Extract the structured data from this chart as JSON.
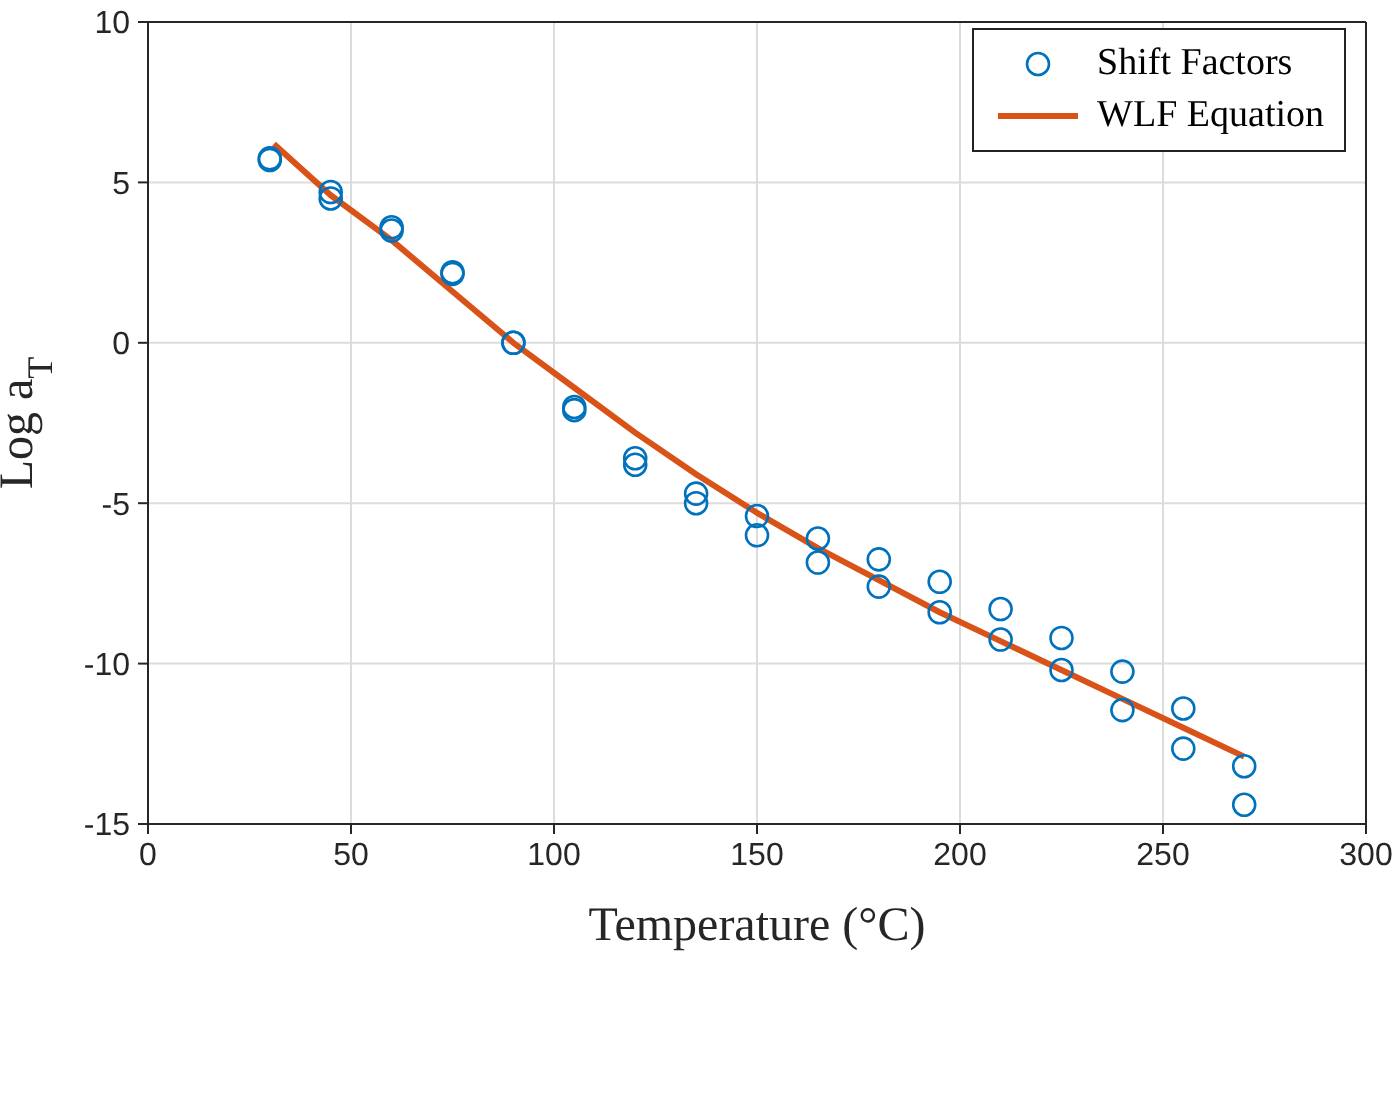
{
  "chart_data": {
    "type": "scatter",
    "xlabel": "Temperature (°C)",
    "ylabel": "Log a$_{T}$",
    "xlim": [
      0,
      300
    ],
    "xticks": [
      0,
      50,
      100,
      150,
      200,
      250,
      300
    ],
    "ylim": [
      -15,
      10
    ],
    "yticks": [
      -15,
      -10,
      -5,
      0,
      5,
      10
    ],
    "grid": true,
    "legend": "top right",
    "series": [
      {
        "name": "Shift Factors",
        "marker": "circle",
        "color": "#0072bd",
        "x": [
          30,
          30,
          45,
          45,
          60,
          60,
          75,
          75,
          90,
          90,
          105,
          105,
          120,
          120,
          135,
          135,
          150,
          150,
          165,
          165,
          180,
          180,
          195,
          195,
          210,
          210,
          225,
          225,
          240,
          240,
          255,
          255,
          270,
          270
        ],
        "values": [
          5.75,
          5.7,
          4.7,
          4.5,
          3.6,
          3.5,
          2.2,
          2.15,
          0,
          0,
          -2.0,
          -2.1,
          -3.6,
          -3.8,
          -4.7,
          -5.0,
          -5.4,
          -6.0,
          -6.1,
          -6.85,
          -6.75,
          -7.6,
          -7.45,
          -8.4,
          -8.3,
          -9.25,
          -9.2,
          -10.2,
          -10.25,
          -11.45,
          -11.4,
          -12.65,
          -13.2,
          -14.4
        ]
      },
      {
        "name": "WLF Equation",
        "type": "line",
        "marker": "none",
        "line_style": "solid",
        "color": "#d95319",
        "x": [
          31,
          45,
          60,
          75,
          90,
          105,
          120,
          135,
          150,
          165,
          180,
          195,
          210,
          225,
          240,
          255,
          270
        ],
        "values": [
          6.2,
          4.6,
          3.2,
          1.6,
          0,
          -1.4,
          -2.8,
          -4.1,
          -5.3,
          -6.4,
          -7.4,
          -8.4,
          -9.3,
          -10.2,
          -11.1,
          -12.0,
          -12.9
        ]
      }
    ]
  }
}
